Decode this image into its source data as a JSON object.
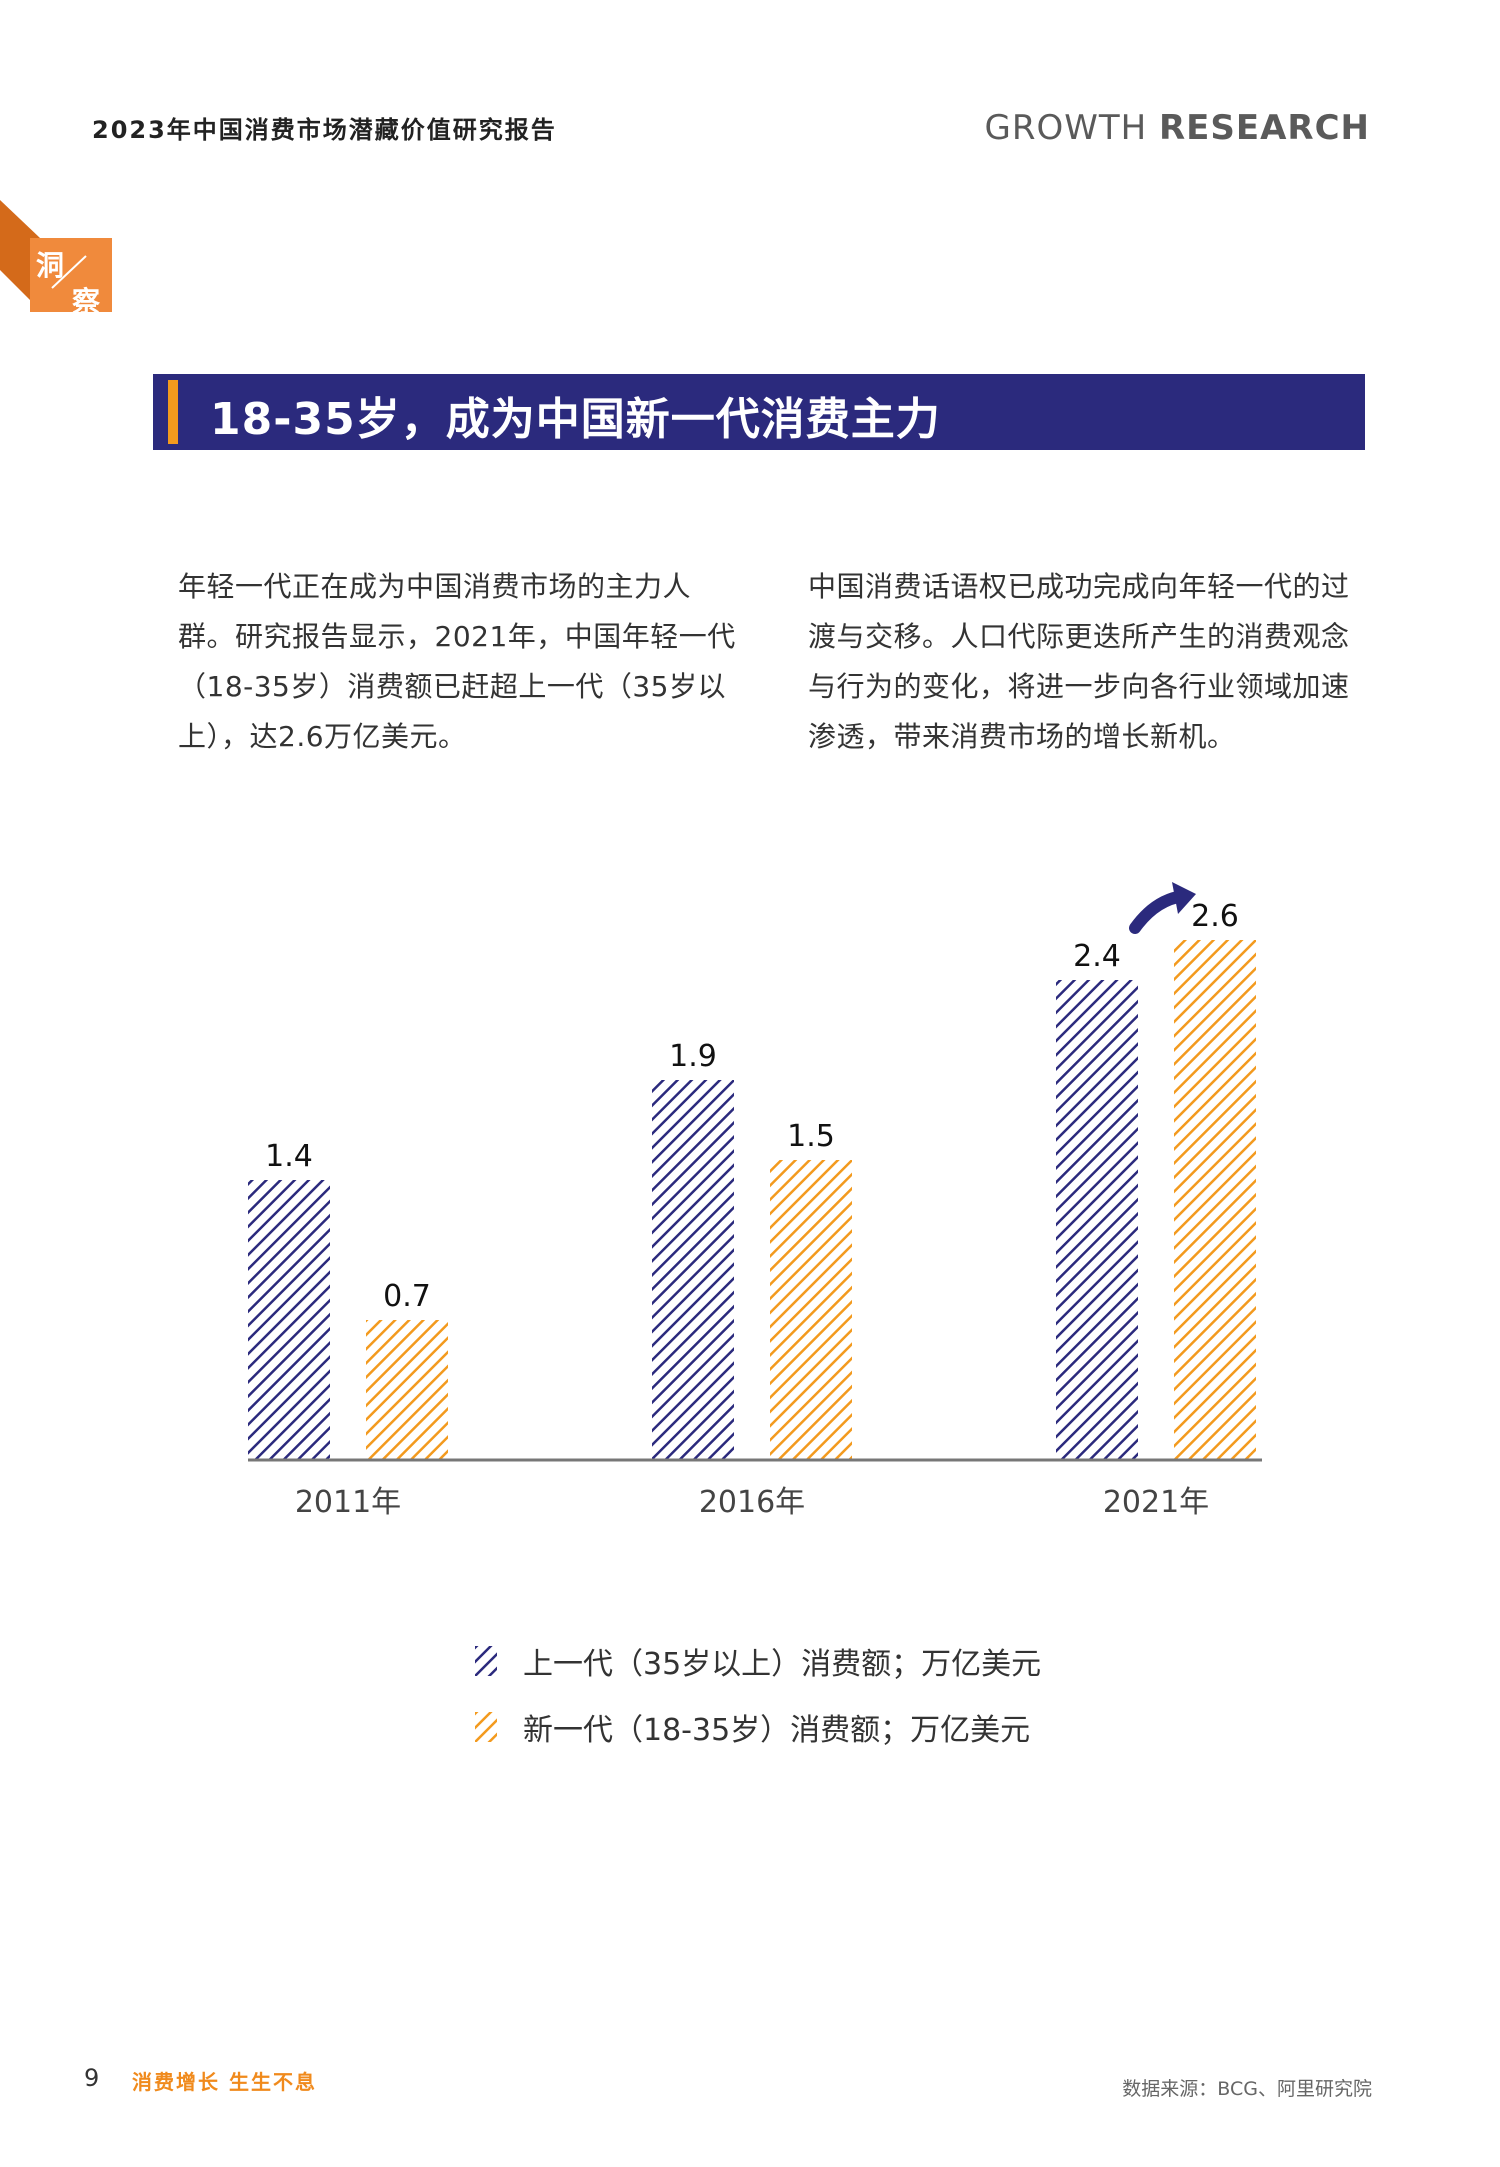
{
  "header": {
    "title": "2023年中国消费市场潜藏价值研究报告",
    "brand_part1": "GROWTH",
    "brand_part2": "RESEARCH"
  },
  "tag": {
    "line1": "洞",
    "line2": "察"
  },
  "section": {
    "title": "18-35岁，成为中国新一代消费主力"
  },
  "paragraphs": {
    "left": "年轻一代正在成为中国消费市场的主力人群。研究报告显示，2021年，中国年轻一代（18-35岁）消费额已赶超上一代（35岁以上），达2.6万亿美元。",
    "right": "中国消费话语权已成功完成向年轻一代的过渡与交移。人口代际更迭所产生的消费观念与行为的变化，将进一步向各行业领域加速渗透，带来消费市场的增长新机。"
  },
  "chart_data": {
    "type": "bar",
    "categories": [
      "2011年",
      "2016年",
      "2021年"
    ],
    "series": [
      {
        "name": "上一代（35岁以上）消费额；万亿美元",
        "values": [
          1.4,
          1.9,
          2.4
        ],
        "color": "#2b2a7d"
      },
      {
        "name": "新一代（18-35岁）消费额；万亿美元",
        "values": [
          0.7,
          1.5,
          2.6
        ],
        "color": "#f39a1e"
      }
    ],
    "ylim": [
      0,
      2.6
    ],
    "grid": false,
    "legend_position": "bottom"
  },
  "footer": {
    "page_number": "9",
    "slogan": "消费增长 生生不息",
    "source": "数据来源：BCG、阿里研究院"
  }
}
